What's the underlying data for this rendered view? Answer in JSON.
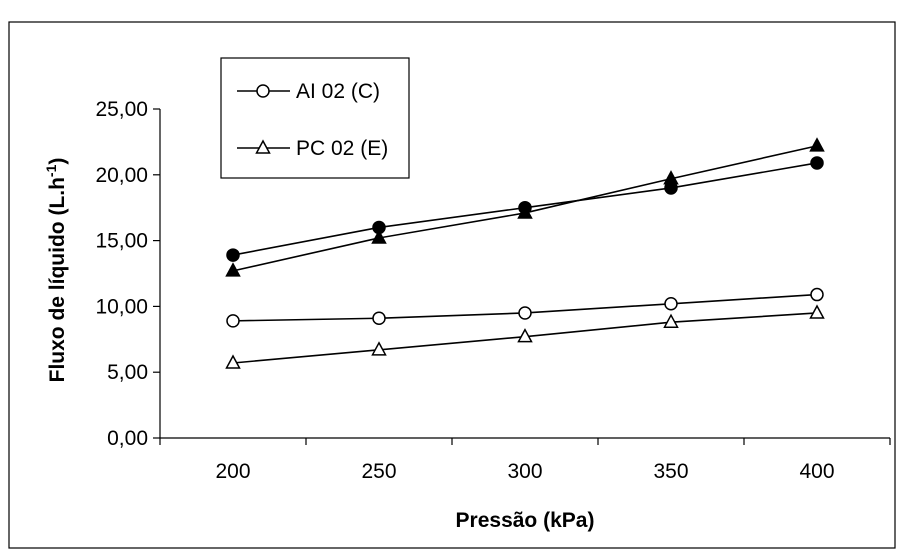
{
  "chart_data": {
    "type": "line",
    "title": "",
    "xlabel": "Pressão (kPa)",
    "ylabel_main": "Fluxo de líquido (L.h",
    "ylabel_sup": "-1",
    "ylabel_close": ")",
    "x": [
      200,
      250,
      300,
      350,
      400
    ],
    "x_tick_labels": [
      "200",
      "250",
      "300",
      "350",
      "400"
    ],
    "ylim": [
      0,
      25
    ],
    "y_ticks": [
      0,
      5,
      10,
      15,
      20,
      25
    ],
    "y_tick_labels": [
      "0,00",
      "5,00",
      "10,00",
      "15,00",
      "20,00",
      "25,00"
    ],
    "grid": false,
    "legend_position": "top-left",
    "series": [
      {
        "name": "AI 02 (C)",
        "marker": "circle",
        "fill": "open",
        "in_legend": true,
        "values": [
          8.9,
          9.1,
          9.5,
          10.2,
          10.9
        ]
      },
      {
        "name": "PC 02 (E)",
        "marker": "triangle",
        "fill": "open",
        "in_legend": true,
        "values": [
          5.7,
          6.7,
          7.7,
          8.8,
          9.5
        ]
      },
      {
        "marker": "circle",
        "fill": "filled",
        "in_legend": false,
        "values": [
          13.9,
          16.0,
          17.5,
          19.0,
          20.9
        ]
      },
      {
        "marker": "triangle",
        "fill": "filled",
        "in_legend": false,
        "values": [
          12.7,
          15.2,
          17.1,
          19.7,
          22.2
        ]
      }
    ]
  }
}
